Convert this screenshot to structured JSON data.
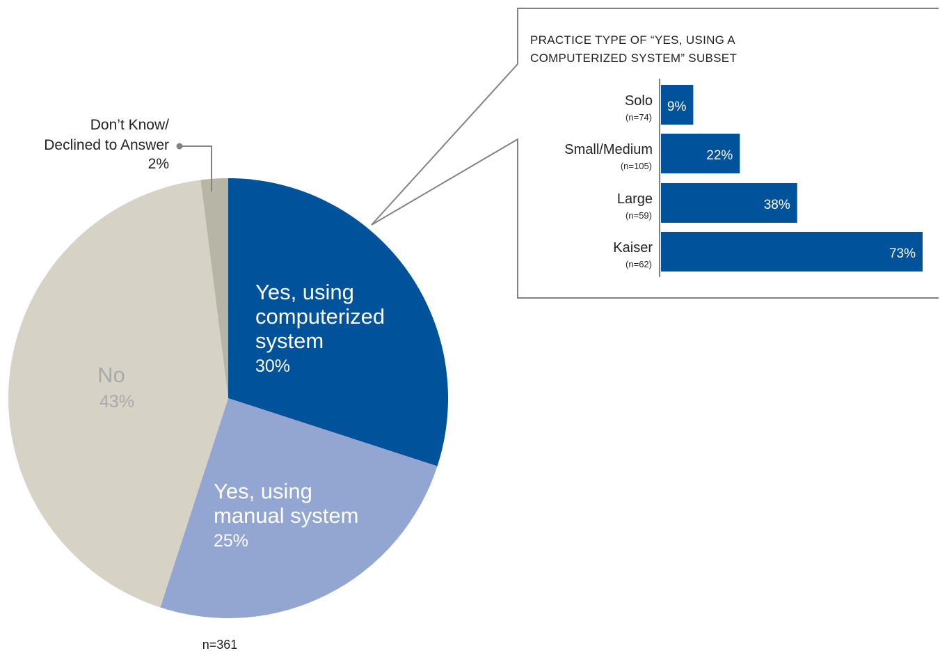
{
  "chart_data": [
    {
      "type": "pie",
      "slices": [
        {
          "label": "Yes, using computerized system",
          "value": 30,
          "value_label": "30%",
          "color": "#00529b"
        },
        {
          "label": "Yes, using manual system",
          "value": 25,
          "value_label": "25%",
          "color": "#93a5d1"
        },
        {
          "label": "No",
          "value": 43,
          "value_label": "43%",
          "color": "#d6d3c6"
        },
        {
          "label": "Don’t Know/ Declined to Answer",
          "value": 2,
          "value_label": "2%",
          "color": "#b7b5a5"
        }
      ],
      "labels": {
        "computerized": [
          "Yes, using",
          "computerized",
          "system"
        ],
        "manual": [
          "Yes, using",
          "manual system"
        ],
        "no": [
          "No"
        ],
        "dk": [
          "Don’t Know/",
          "Declined to Answer"
        ]
      },
      "n_label": "n=361"
    },
    {
      "type": "bar",
      "orientation": "horizontal",
      "title": "PRACTICE TYPE OF “YES, USING A COMPUTERIZED SYSTEM” SUBSET",
      "categories": [
        "Solo",
        "Small/Medium",
        "Large",
        "Kaiser"
      ],
      "n_labels": [
        "(n=74)",
        "(n=105)",
        "(n=59)",
        "(n=62)"
      ],
      "values": [
        9,
        22,
        38,
        73
      ],
      "value_labels": [
        "9%",
        "22%",
        "38%",
        "73%"
      ],
      "xlim": [
        0,
        73
      ],
      "color": "#00529b"
    }
  ],
  "colors": {
    "callout_line": "#808285",
    "text": "#231f20",
    "no_label": "#a7a9ac"
  }
}
